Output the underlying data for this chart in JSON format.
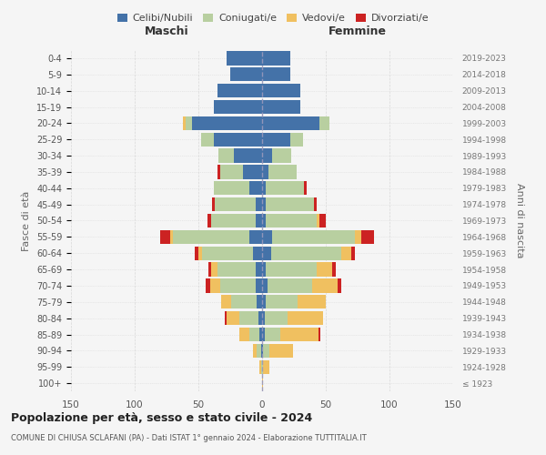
{
  "age_groups": [
    "100+",
    "95-99",
    "90-94",
    "85-89",
    "80-84",
    "75-79",
    "70-74",
    "65-69",
    "60-64",
    "55-59",
    "50-54",
    "45-49",
    "40-44",
    "35-39",
    "30-34",
    "25-29",
    "20-24",
    "15-19",
    "10-14",
    "5-9",
    "0-4"
  ],
  "birth_years": [
    "≤ 1923",
    "1924-1928",
    "1929-1933",
    "1934-1938",
    "1939-1943",
    "1944-1948",
    "1949-1953",
    "1954-1958",
    "1959-1963",
    "1964-1968",
    "1969-1973",
    "1974-1978",
    "1979-1983",
    "1984-1988",
    "1989-1993",
    "1994-1998",
    "1999-2003",
    "2004-2008",
    "2009-2013",
    "2014-2018",
    "2019-2023"
  ],
  "colors": {
    "celibi": "#4472a8",
    "coniugati": "#b8cfa0",
    "vedovi": "#f0c060",
    "divorziati": "#cc2222"
  },
  "males": {
    "celibi": [
      0,
      0,
      1,
      2,
      3,
      4,
      5,
      5,
      7,
      10,
      5,
      5,
      10,
      15,
      22,
      38,
      55,
      38,
      35,
      25,
      28
    ],
    "coniugati": [
      0,
      1,
      3,
      8,
      15,
      20,
      28,
      30,
      40,
      60,
      35,
      32,
      28,
      18,
      12,
      10,
      5,
      0,
      0,
      0,
      0
    ],
    "vedovi": [
      0,
      1,
      3,
      8,
      10,
      8,
      8,
      5,
      3,
      2,
      0,
      0,
      0,
      0,
      0,
      0,
      2,
      0,
      0,
      0,
      0
    ],
    "divorziati": [
      0,
      0,
      0,
      0,
      1,
      0,
      3,
      2,
      3,
      8,
      3,
      2,
      0,
      2,
      0,
      0,
      0,
      0,
      0,
      0,
      0
    ]
  },
  "females": {
    "celibi": [
      0,
      0,
      1,
      2,
      2,
      3,
      4,
      3,
      7,
      8,
      3,
      3,
      3,
      5,
      8,
      22,
      45,
      30,
      30,
      22,
      22
    ],
    "coniugati": [
      0,
      1,
      5,
      12,
      18,
      25,
      35,
      40,
      55,
      65,
      40,
      38,
      30,
      22,
      15,
      10,
      8,
      0,
      0,
      0,
      0
    ],
    "vedovi": [
      1,
      5,
      18,
      30,
      28,
      22,
      20,
      12,
      8,
      5,
      2,
      0,
      0,
      0,
      0,
      0,
      0,
      0,
      0,
      0,
      0
    ],
    "divorziati": [
      0,
      0,
      0,
      2,
      0,
      0,
      3,
      3,
      3,
      10,
      5,
      2,
      2,
      0,
      0,
      0,
      0,
      0,
      0,
      0,
      0
    ]
  },
  "xlim": 150,
  "title": "Popolazione per età, sesso e stato civile - 2024",
  "subtitle": "COMUNE DI CHIUSA SCLAFANI (PA) - Dati ISTAT 1° gennaio 2024 - Elaborazione TUTTITALIA.IT",
  "ylabel_left": "Fasce di età",
  "ylabel_right": "Anni di nascita",
  "header_left": "Maschi",
  "header_right": "Femmine",
  "legend_labels": [
    "Celibi/Nubili",
    "Coniugati/e",
    "Vedovi/e",
    "Divorziati/e"
  ],
  "background_color": "#f5f5f5",
  "grid_color": "#cccccc"
}
